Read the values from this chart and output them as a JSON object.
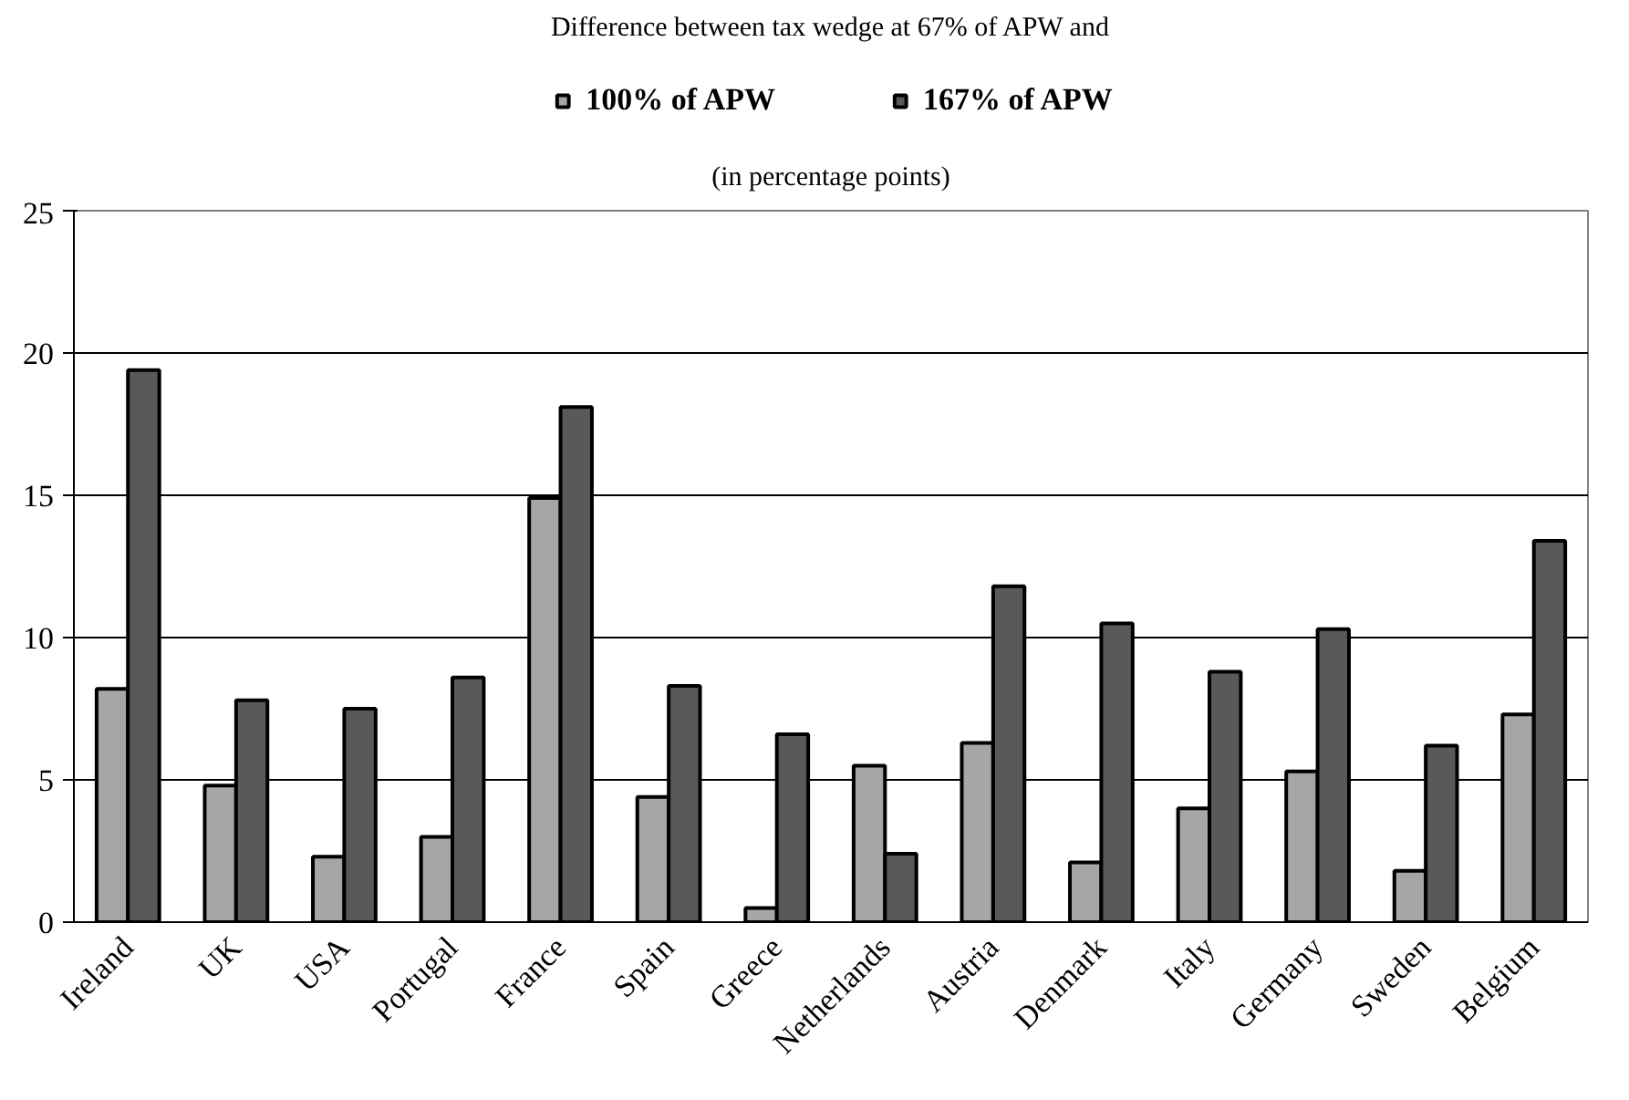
{
  "chart_data": {
    "type": "bar",
    "title": "Difference between tax wedge at 67% of APW and",
    "subtitle": "(in percentage points)",
    "categories": [
      "Ireland",
      "UK",
      "USA",
      "Portugal",
      "France",
      "Spain",
      "Greece",
      "Netherlands",
      "Austria",
      "Denmark",
      "Italy",
      "Germany",
      "Sweden",
      "Belgium"
    ],
    "series": [
      {
        "name": "100% of APW",
        "color": "#a6a6a6",
        "values": [
          8.2,
          4.8,
          2.3,
          3.0,
          14.9,
          4.4,
          0.5,
          5.5,
          6.3,
          2.1,
          4.0,
          5.3,
          1.8,
          7.3
        ]
      },
      {
        "name": "167% of APW",
        "color": "#595959",
        "values": [
          19.4,
          7.8,
          7.5,
          8.6,
          18.1,
          8.3,
          6.6,
          2.4,
          11.8,
          10.5,
          8.8,
          10.3,
          6.2,
          13.4
        ]
      }
    ],
    "ylim": [
      0,
      25
    ],
    "yticks": [
      0,
      5,
      10,
      15,
      20,
      25
    ],
    "grid": "y",
    "legend": "top"
  }
}
